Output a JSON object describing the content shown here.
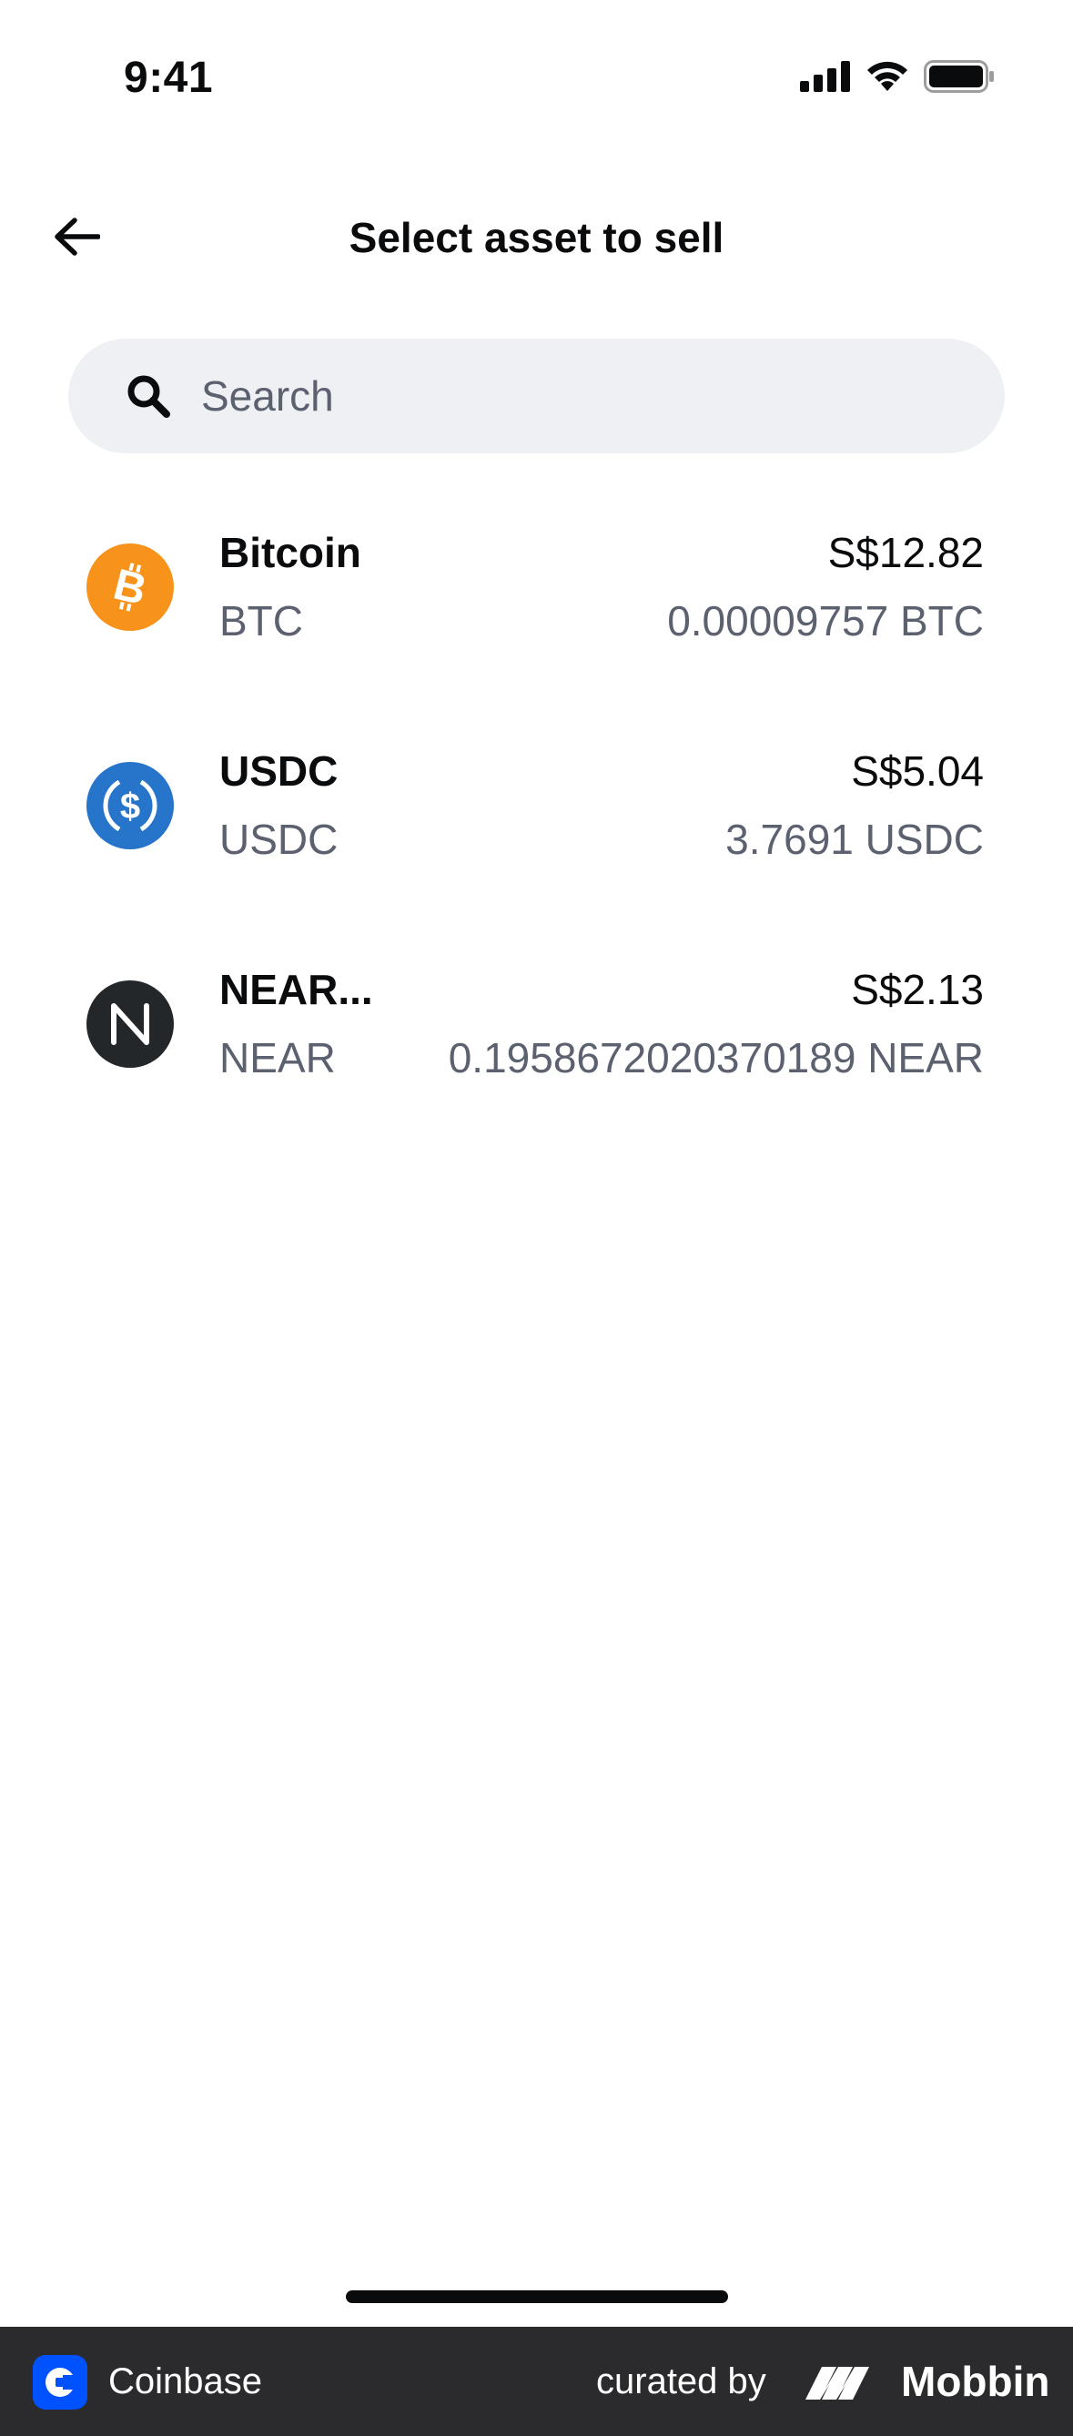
{
  "status_bar": {
    "time": "9:41"
  },
  "header": {
    "title": "Select asset to sell",
    "back_icon": "arrow-left-icon"
  },
  "search": {
    "placeholder": "Search",
    "value": "",
    "icon": "search-icon"
  },
  "assets": [
    {
      "name": "Bitcoin",
      "ticker": "BTC",
      "fiat_value": "S$12.82",
      "crypto_amount": "0.00009757 BTC",
      "icon": "bitcoin-icon",
      "color": "#f7931a"
    },
    {
      "name": "USDC",
      "ticker": "USDC",
      "fiat_value": "S$5.04",
      "crypto_amount": "3.7691 USDC",
      "icon": "usdc-icon",
      "color": "#2775ca"
    },
    {
      "name": "NEAR...",
      "ticker": "NEAR",
      "fiat_value": "S$2.13",
      "crypto_amount": "0.1958672020370189 NEAR",
      "icon": "near-icon",
      "color": "#24272a"
    }
  ],
  "footer": {
    "app_name": "Coinbase",
    "curated_by": "curated by",
    "brand": "Mobbin",
    "brand_color": "#0052ff"
  }
}
